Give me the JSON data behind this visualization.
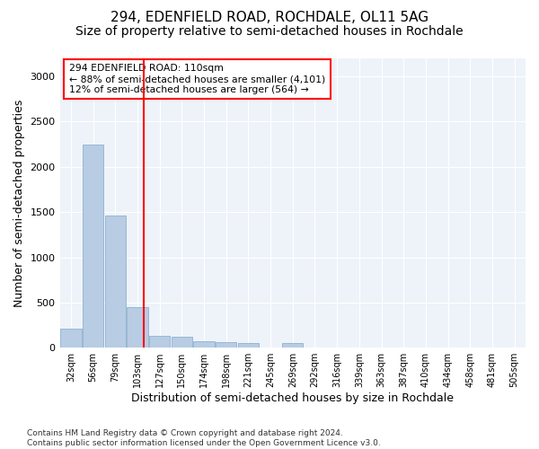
{
  "title1": "294, EDENFIELD ROAD, ROCHDALE, OL11 5AG",
  "title2": "Size of property relative to semi-detached houses in Rochdale",
  "xlabel": "Distribution of semi-detached houses by size in Rochdale",
  "ylabel": "Number of semi-detached properties",
  "footer": "Contains HM Land Registry data © Crown copyright and database right 2024.\nContains public sector information licensed under the Open Government Licence v3.0.",
  "bins": [
    "32sqm",
    "56sqm",
    "79sqm",
    "103sqm",
    "127sqm",
    "150sqm",
    "174sqm",
    "198sqm",
    "221sqm",
    "245sqm",
    "269sqm",
    "292sqm",
    "316sqm",
    "339sqm",
    "363sqm",
    "387sqm",
    "410sqm",
    "434sqm",
    "458sqm",
    "481sqm",
    "505sqm"
  ],
  "values": [
    210,
    2250,
    1460,
    450,
    130,
    120,
    75,
    65,
    55,
    0,
    55,
    0,
    0,
    0,
    0,
    0,
    0,
    0,
    0,
    0,
    0
  ],
  "bar_color": "#b8cce4",
  "bar_edge_color": "#7fa7c8",
  "line_color": "red",
  "annotation_text": "294 EDENFIELD ROAD: 110sqm\n← 88% of semi-detached houses are smaller (4,101)\n12% of semi-detached houses are larger (564) →",
  "annotation_box_color": "white",
  "annotation_box_edge": "red",
  "bg_color": "#eef3f9",
  "ylim": [
    0,
    3200
  ],
  "yticks": [
    0,
    500,
    1000,
    1500,
    2000,
    2500,
    3000
  ],
  "title1_fontsize": 11,
  "title2_fontsize": 10,
  "xlabel_fontsize": 9,
  "ylabel_fontsize": 9
}
